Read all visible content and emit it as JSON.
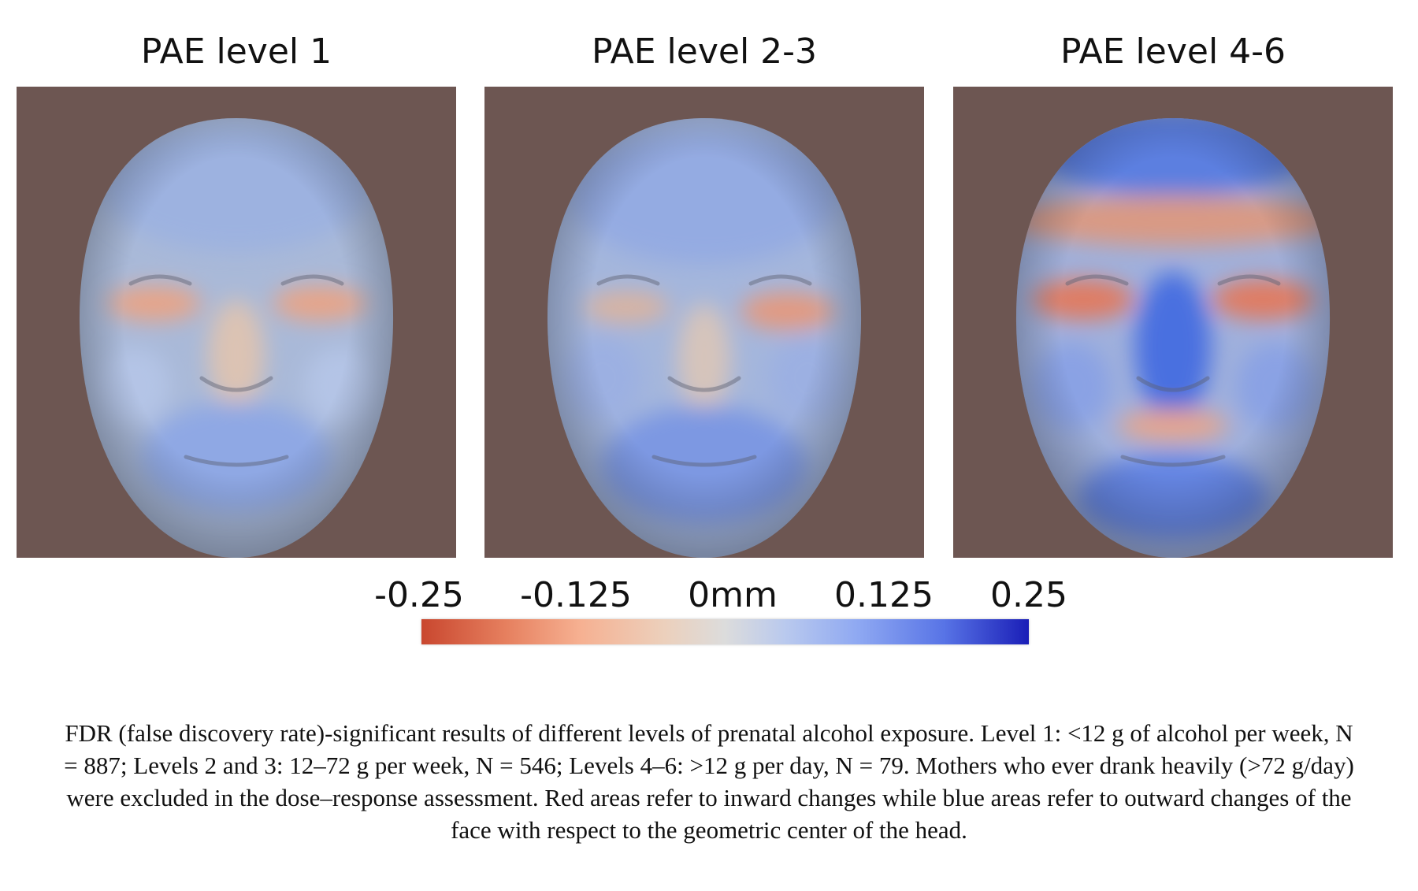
{
  "panels": [
    {
      "title": "PAE level 1"
    },
    {
      "title": "PAE level 2-3"
    },
    {
      "title": "PAE level 4-6"
    }
  ],
  "colors": {
    "background": "#6d5652",
    "inward_red": "#c9472f",
    "neutral": "#dcdcdc",
    "outward_blue": "#1a1eb7"
  },
  "colorbar": {
    "labels": [
      "-0.25",
      "-0.125",
      "0mm",
      "0.125",
      "0.25"
    ]
  },
  "caption": "FDR (false discovery rate)-significant results of different levels of prenatal alcohol exposure. Level 1: <12 g of alcohol per week, N = 887; Levels 2 and 3: 12–72 g per week, N = 546; Levels 4–6: >12 g per day, N = 79. Mothers who ever drank heavily (>72 g/day) were excluded in the dose–response assessment. Red areas refer to inward changes while blue areas refer to outward changes of the face with respect to the geometric center of the head."
}
